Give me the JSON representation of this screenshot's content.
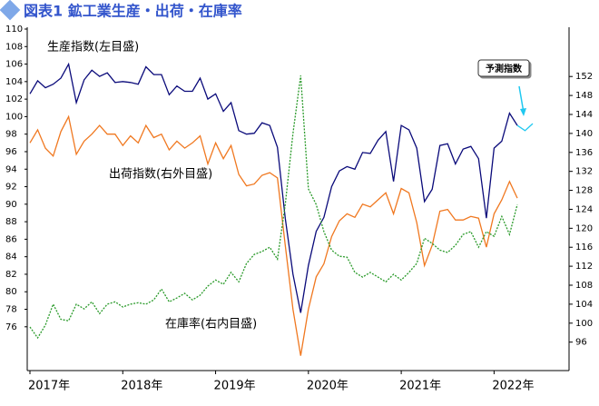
{
  "chart_data": {
    "type": "line",
    "title": "図表1 鉱工業生産・出荷・在庫率",
    "categories": [
      "2017年",
      null,
      null,
      null,
      null,
      null,
      null,
      null,
      null,
      null,
      null,
      null,
      "2018年",
      null,
      null,
      null,
      null,
      null,
      null,
      null,
      null,
      null,
      null,
      null,
      "2019年",
      null,
      null,
      null,
      null,
      null,
      null,
      null,
      null,
      null,
      null,
      null,
      "2020年",
      null,
      null,
      null,
      null,
      null,
      null,
      null,
      null,
      null,
      null,
      null,
      "2021年",
      null,
      null,
      null,
      null,
      null,
      null,
      null,
      null,
      null,
      null,
      null,
      "2022年",
      null,
      null,
      null,
      null,
      null
    ],
    "ylim": [
      71,
      110
    ],
    "yticks": [
      76,
      78,
      80,
      82,
      84,
      86,
      88,
      90,
      92,
      94,
      96,
      98,
      100,
      102,
      104,
      106,
      108,
      110
    ],
    "y2lim": [
      90,
      162
    ],
    "y2ticks": [
      96,
      100,
      104,
      108,
      112,
      116,
      120,
      124,
      128,
      132,
      136,
      140,
      144,
      148,
      152
    ],
    "grid": false,
    "series": [
      {
        "name": "生産指数(左目盛)",
        "color": "#0a0a7a",
        "values": [
          102.6,
          104.1,
          103.3,
          103.7,
          104.4,
          106.0,
          101.6,
          104.2,
          105.3,
          104.6,
          105.0,
          103.9,
          104.0,
          103.9,
          103.7,
          105.7,
          104.8,
          104.8,
          102.5,
          103.5,
          102.9,
          102.9,
          104.4,
          102.0,
          102.6,
          100.6,
          101.6,
          98.4,
          98.0,
          98.1,
          99.3,
          99.0,
          96.5,
          88.4,
          82,
          77.6,
          83,
          86.9,
          88.5,
          92.0,
          93.8,
          94.3,
          94.0,
          95.9,
          95.8,
          97.3,
          98.3,
          92.6,
          99.0,
          98.5,
          96.4,
          90.3,
          91.7,
          96.7,
          96.9,
          94.6,
          96.3,
          96.6,
          95.2,
          88.4,
          96.4,
          97.2,
          100.4,
          99.0,
          null,
          null
        ]
      },
      {
        "name": "出荷指数(右外目盛)",
        "color": "#f07820",
        "values": [
          97.0,
          98.5,
          96.4,
          95.5,
          98.3,
          100.0,
          95.7,
          97.2,
          98.0,
          99.0,
          98.0,
          98.0,
          96.7,
          97.8,
          97.0,
          99.0,
          97.6,
          98.0,
          96.2,
          97.2,
          96.4,
          97.0,
          97.8,
          94.6,
          97.0,
          95.2,
          96.7,
          93.4,
          92.1,
          92.3,
          93.3,
          93.6,
          93.0,
          85.3,
          78,
          72.7,
          78,
          81.7,
          83.2,
          86.3,
          88.1,
          88.9,
          88.5,
          90.0,
          89.7,
          90.5,
          91.3,
          88.9,
          91.8,
          91.3,
          87.9,
          83.0,
          85.3,
          89.2,
          89.4,
          88.2,
          88.2,
          88.6,
          88.4,
          85.1,
          88.9,
          90.5,
          92.6,
          90.7,
          null,
          null
        ]
      },
      {
        "name": "在庫率(右内目盛)",
        "color": "#2a9a2a",
        "axis": "y2",
        "values": [
          99.2,
          96.9,
          99.6,
          104.0,
          100.8,
          100.5,
          104,
          103,
          104.5,
          102,
          104,
          104.5,
          103.4,
          104,
          104.3,
          104,
          104.9,
          107.2,
          104.5,
          105.3,
          106.3,
          104.9,
          105.9,
          107.8,
          109.1,
          108.2,
          110.7,
          108.7,
          112.6,
          114.5,
          115.1,
          116.0,
          113.5,
          125,
          140,
          152.2,
          128.3,
          125,
          119.3,
          115.4,
          114.1,
          113.9,
          110.7,
          109.7,
          110.7,
          109.7,
          108.7,
          110.3,
          109.1,
          110.7,
          112.6,
          117.9,
          116.8,
          115.4,
          114.9,
          116.4,
          118.7,
          119.3,
          116.0,
          119.3,
          118.3,
          122.5,
          118.7,
          125.0,
          null,
          null
        ]
      },
      {
        "name": "予測指数",
        "color": "#20c8f0",
        "values": [
          null,
          null,
          null,
          null,
          null,
          null,
          null,
          null,
          null,
          null,
          null,
          null,
          null,
          null,
          null,
          null,
          null,
          null,
          null,
          null,
          null,
          null,
          null,
          null,
          null,
          null,
          null,
          null,
          null,
          null,
          null,
          null,
          null,
          null,
          null,
          null,
          null,
          null,
          null,
          null,
          null,
          null,
          null,
          null,
          null,
          null,
          null,
          null,
          null,
          null,
          null,
          null,
          null,
          null,
          null,
          null,
          null,
          null,
          null,
          null,
          null,
          null,
          null,
          99.0,
          98.4,
          99.2
        ]
      }
    ]
  }
}
